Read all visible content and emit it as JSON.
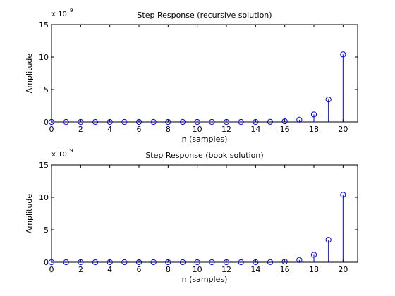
{
  "chart_data": [
    {
      "type": "stem",
      "title": "Step Response (recursive solution)",
      "xlabel": "n (samples)",
      "ylabel": "Amplitude",
      "y_exponent_label": "x 10",
      "y_exponent_power": "9",
      "xlim": [
        0,
        21
      ],
      "ylim": [
        0,
        15
      ],
      "xticks": [
        "0",
        "2",
        "4",
        "6",
        "8",
        "10",
        "12",
        "14",
        "16",
        "18",
        "20"
      ],
      "yticks": [
        "0",
        "5",
        "10",
        "15"
      ],
      "grid": false,
      "x": [
        0,
        1,
        2,
        3,
        4,
        5,
        6,
        7,
        8,
        9,
        10,
        11,
        12,
        13,
        14,
        15,
        16,
        17,
        18,
        19,
        20
      ],
      "values": [
        0,
        0,
        0,
        0,
        0,
        0,
        0,
        0,
        0,
        0,
        0,
        0,
        0,
        0,
        0,
        0.02,
        0.1,
        0.35,
        1.15,
        3.45,
        10.4
      ]
    },
    {
      "type": "stem",
      "title": "Step Response (book solution)",
      "xlabel": "n (samples)",
      "ylabel": "Amplitude",
      "y_exponent_label": "x 10",
      "y_exponent_power": "9",
      "xlim": [
        0,
        21
      ],
      "ylim": [
        0,
        15
      ],
      "xticks": [
        "0",
        "2",
        "4",
        "6",
        "8",
        "10",
        "12",
        "14",
        "16",
        "18",
        "20"
      ],
      "yticks": [
        "0",
        "5",
        "10",
        "15"
      ],
      "grid": false,
      "x": [
        0,
        1,
        2,
        3,
        4,
        5,
        6,
        7,
        8,
        9,
        10,
        11,
        12,
        13,
        14,
        15,
        16,
        17,
        18,
        19,
        20
      ],
      "values": [
        0,
        0,
        0,
        0,
        0,
        0,
        0,
        0,
        0,
        0,
        0,
        0,
        0,
        0,
        0,
        0.02,
        0.1,
        0.35,
        1.15,
        3.45,
        10.4
      ]
    }
  ],
  "colors": {
    "stem": "#0000ff",
    "axis": "#000000",
    "background": "#ffffff"
  }
}
